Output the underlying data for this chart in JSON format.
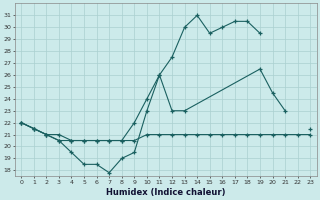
{
  "xlabel": "Humidex (Indice chaleur)",
  "background_color": "#cceaea",
  "grid_color": "#aad0d0",
  "line_color": "#1a6060",
  "hours": [
    0,
    1,
    2,
    3,
    4,
    5,
    6,
    7,
    8,
    9,
    10,
    11,
    12,
    13,
    14,
    15,
    16,
    17,
    18,
    19,
    20,
    21,
    22,
    23
  ],
  "line1": [
    22,
    21.5,
    21,
    20.5,
    20.5,
    20.5,
    20.5,
    20.5,
    20.5,
    20.5,
    21,
    21,
    21,
    21,
    21,
    21,
    21,
    21,
    21,
    21,
    21,
    21,
    21,
    21
  ],
  "line2_x": [
    0,
    1,
    2,
    3,
    4,
    5,
    6,
    7,
    8,
    9,
    10,
    11,
    12,
    13,
    14,
    15,
    16,
    17,
    18,
    19
  ],
  "line2_y": [
    22,
    21.5,
    21,
    20.5,
    19.5,
    18.5,
    18.5,
    17.8,
    19,
    19.5,
    23,
    26,
    27.5,
    30,
    31,
    29.5,
    30,
    30.5,
    30.5,
    29.5
  ],
  "line3_x": [
    0,
    1,
    2,
    3,
    4,
    5,
    6,
    7,
    8,
    9,
    10,
    11,
    12,
    13,
    19,
    20,
    21,
    22,
    23
  ],
  "line3_y": [
    22,
    21.5,
    21,
    21,
    20.5,
    20.5,
    20.5,
    20.5,
    20.5,
    22,
    24,
    26,
    23,
    23,
    26.5,
    24.5,
    23,
    null,
    21.5
  ],
  "ylim_min": 17.5,
  "ylim_max": 32,
  "yticks": [
    18,
    19,
    20,
    21,
    22,
    23,
    24,
    25,
    26,
    27,
    28,
    29,
    30,
    31
  ]
}
